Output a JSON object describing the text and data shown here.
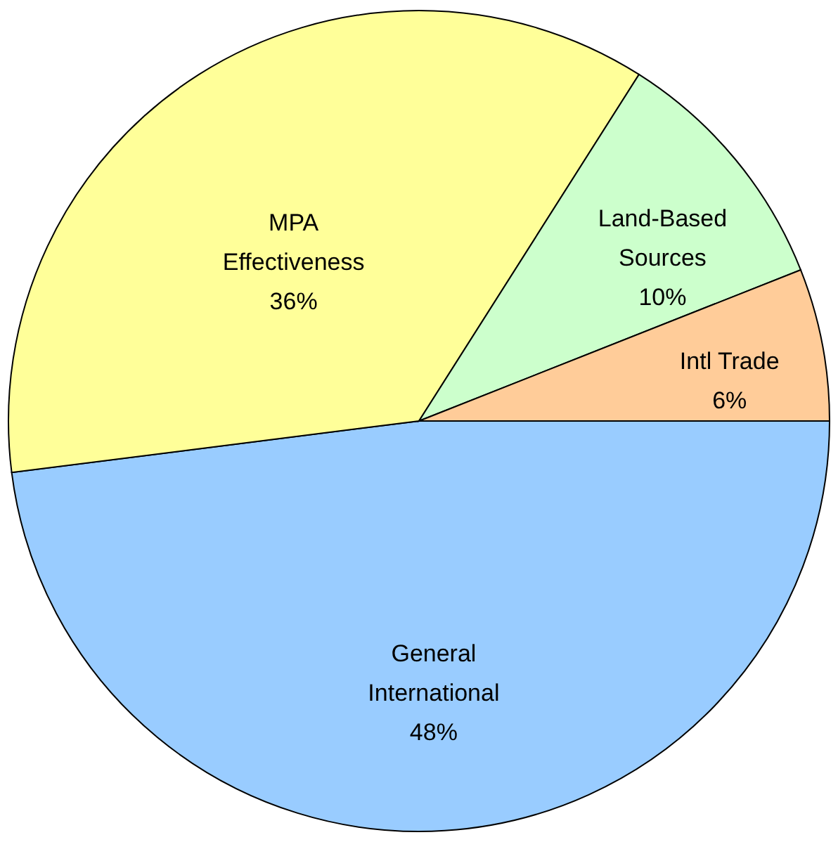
{
  "chart_data": {
    "type": "pie",
    "categories": [
      "General International",
      "MPA Effectiveness",
      "Land-Based Sources",
      "Intl Trade"
    ],
    "values": [
      48,
      36,
      10,
      6
    ],
    "colors": [
      "#99ccff",
      "#ffff99",
      "#ccffcc",
      "#ffcc99"
    ],
    "value_labels": [
      "48%",
      "36%",
      "10%",
      "6%"
    ]
  }
}
